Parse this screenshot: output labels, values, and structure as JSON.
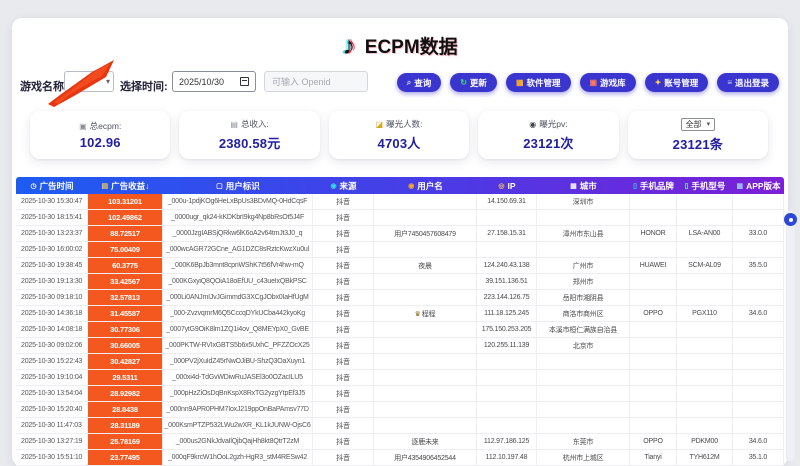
{
  "header": {
    "title": "ECPM数据",
    "logo_icon": "tiktok-note"
  },
  "filters": {
    "game_label": "游戏名称:",
    "time_label": "选择时间:",
    "date_value": "2025/10/30",
    "openid_placeholder": "可输入 Openid"
  },
  "actions": [
    {
      "label": "查询",
      "icon": "search"
    },
    {
      "label": "更新",
      "icon": "refresh"
    },
    {
      "label": "软件管理",
      "icon": "grid"
    },
    {
      "label": "游戏库",
      "icon": "gamepad"
    },
    {
      "label": "账号管理",
      "icon": "key"
    },
    {
      "label": "退出登录",
      "icon": "logout"
    }
  ],
  "stats": {
    "cards": [
      {
        "icon": "check-box",
        "label": "总ecpm:",
        "value": "102.96"
      },
      {
        "icon": "bank-card",
        "label": "总收入:",
        "value": "2380.58元"
      },
      {
        "icon": "people",
        "label": "曝光人数:",
        "value": "4703人"
      },
      {
        "icon": "camera",
        "label": "曝光pv:",
        "value": "23121次"
      }
    ],
    "filter_card": {
      "select_value": "全部",
      "value": "23121条"
    }
  },
  "table": {
    "columns": [
      {
        "label": "广告时间",
        "icon": "clock",
        "sortable": false
      },
      {
        "label": "广告收益",
        "icon": "money",
        "sort": "↓",
        "sortable": true
      },
      {
        "label": "用户标识",
        "icon": "id-card",
        "sortable": false
      },
      {
        "label": "来源",
        "icon": "source-dot",
        "sortable": false
      },
      {
        "label": "用户名",
        "icon": "user",
        "sortable": false
      },
      {
        "label": "IP",
        "icon": "ip-dot",
        "sortable": false
      },
      {
        "label": "城市",
        "icon": "city",
        "sortable": false
      },
      {
        "label": "手机品牌",
        "icon": "phone",
        "sortable": false
      },
      {
        "label": "手机型号",
        "icon": "phone",
        "sortable": false
      },
      {
        "label": "APP版本",
        "icon": "app-box",
        "sortable": false
      }
    ],
    "rows": [
      {
        "time": "2025-10-30 15:30:47",
        "revenue": "103.31201",
        "uid": "_000u-1pdjKOg6HeLxBpUs3BDvMQ-0HdCqsF",
        "source": "抖音",
        "user": "",
        "ip": "14.150.69.31",
        "city": "深圳市",
        "brand": "",
        "model": "",
        "app": ""
      },
      {
        "time": "2025-10-30 18:15:41",
        "revenue": "102.49862",
        "uid": "_0000ugr_qk24-kKDKbrI9kg4Np8bRsOt5J4F",
        "source": "抖音",
        "user": "",
        "ip": "",
        "city": "",
        "brand": "",
        "model": "",
        "app": ""
      },
      {
        "time": "2025-10-30 13:23:37",
        "revenue": "88.72517",
        "uid": "_0000JzgIABSjQRkw6lK6oA2v64tmJt3J0_q",
        "source": "抖音",
        "user": "用户7450457608479",
        "ip": "27.158.15.31",
        "city": "漳州市东山县",
        "brand": "HONOR",
        "model": "LSA-AN00",
        "app": "33.0.0"
      },
      {
        "time": "2025-10-30 16:00:02",
        "revenue": "75.00409",
        "uid": "_000wcAGR72GCne_AG1DZC8sRztcKwzXu0ul",
        "source": "抖音",
        "user": "",
        "ip": "",
        "city": "",
        "brand": "",
        "model": "",
        "app": ""
      },
      {
        "time": "2025-10-30 19:38:45",
        "revenue": "60.3775",
        "uid": "_000K6BpJb3mnt8cpnWShK7t56fVr4hw-mQ",
        "source": "抖音",
        "user": "夜晨",
        "ip": "124.240.43.138",
        "city": "广州市",
        "brand": "HUAWEI",
        "model": "SCM-AL09",
        "app": "35.5.0"
      },
      {
        "time": "2025-10-30 19:13:30",
        "revenue": "33.42567",
        "uid": "_000KGxyiQ8QOiA18oEfUU_c43ueIxQBkPSC",
        "source": "抖音",
        "user": "",
        "ip": "39.151.136.51",
        "city": "郑州市",
        "brand": "",
        "model": "",
        "app": ""
      },
      {
        "time": "2025-10-30 09:18:10",
        "revenue": "32.57813",
        "uid": "_000Li0ANJmIJvJGimmdG3XCgJObx0IaHfUgM",
        "source": "抖音",
        "user": "",
        "ip": "223.144.126.75",
        "city": "岳阳市湘阴县",
        "brand": "",
        "model": "",
        "app": ""
      },
      {
        "time": "2025-10-30 14:36:18",
        "revenue": "31.45587",
        "uid": "_000-ZvzvqmrM6Q5CccqDYkUCba442kyoKg",
        "source": "抖音",
        "user": "程程",
        "user_icon": "crown",
        "ip": "111.18.125.245",
        "city": "商洛市商州区",
        "brand": "OPPO",
        "model": "PGX110",
        "app": "34.6.0"
      },
      {
        "time": "2025-10-30 14:08:18",
        "revenue": "30.77306",
        "uid": "_0007ytG9OiK8lm1ZQ1i4ov_Q8MEYpX0_GvBE",
        "source": "抖音",
        "user": "",
        "ip": "175.150.253.205",
        "city": "本溪市桓仁满族自治县",
        "brand": "",
        "model": "",
        "app": ""
      },
      {
        "time": "2025-10-30 09:02:06",
        "revenue": "30.66005",
        "uid": "_000PKTW-RVIxGBTS5b6x5UxhC_PFZZOcX25",
        "source": "抖音",
        "user": "",
        "ip": "120.255.11.139",
        "city": "北京市",
        "brand": "",
        "model": "",
        "app": ""
      },
      {
        "time": "2025-10-30 15:22:43",
        "revenue": "30.42827",
        "uid": "_000PV2jXuIdZ45rNwOJiBU-ShzQ3OaXuyn1",
        "source": "抖音",
        "user": "",
        "ip": "",
        "city": "",
        "brand": "",
        "model": "",
        "app": ""
      },
      {
        "time": "2025-10-30 19:10:04",
        "revenue": "29.5311",
        "uid": "_000xi4d-TdGvWDiwRuJASEl3o0OZacILU5",
        "source": "抖音",
        "user": "",
        "ip": "",
        "city": "",
        "brand": "",
        "model": "",
        "app": ""
      },
      {
        "time": "2025-10-30 13:54:04",
        "revenue": "28.92982",
        "uid": "_000pHzZiOsDqBnKspX8RxTG2yzgYtpEf3J5",
        "source": "抖音",
        "user": "",
        "ip": "",
        "city": "",
        "brand": "",
        "model": "",
        "app": ""
      },
      {
        "time": "2025-10-30 15:20:40",
        "revenue": "28.8438",
        "uid": "_000nn9APR0PHM7IoxJ219ppOnBaPAmsv77D",
        "source": "抖音",
        "user": "",
        "ip": "",
        "city": "",
        "brand": "",
        "model": "",
        "app": ""
      },
      {
        "time": "2025-10-30 11:47:03",
        "revenue": "28.31189",
        "uid": "_000KsmPTZP532LWu2wXR_KL1kJUNW-OjsC6",
        "source": "抖音",
        "user": "",
        "ip": "",
        "city": "",
        "brand": "",
        "model": "",
        "app": ""
      },
      {
        "time": "2025-10-30 13:27:19",
        "revenue": "25.78169",
        "uid": "_000us2GNkJdvaIlQjbQajHh8kt8QtrT2zM",
        "source": "抖音",
        "user": "逐鹿未来",
        "ip": "112.97.186.125",
        "city": "东莞市",
        "brand": "OPPO",
        "model": "PDKM00",
        "app": "34.6.0"
      },
      {
        "time": "2025-10-30 15:51:10",
        "revenue": "23.77495",
        "uid": "_000qF9krcW1hOoL2gzh-HgR3_stM4RESw42",
        "source": "抖音",
        "user": "用户4354906452544",
        "ip": "112.10.197.48",
        "city": "杭州市上城区",
        "brand": "Tianyi",
        "model": "TYH612M",
        "app": "35.1.0"
      }
    ]
  },
  "colors": {
    "accent_blue": "#1d5cf2",
    "accent_purple": "#7b1fd6",
    "revenue_orange": "#f4581f",
    "button_indigo": "#3b35cf",
    "stat_value_navy": "#23209f",
    "annotation_red": "#e8350f"
  }
}
